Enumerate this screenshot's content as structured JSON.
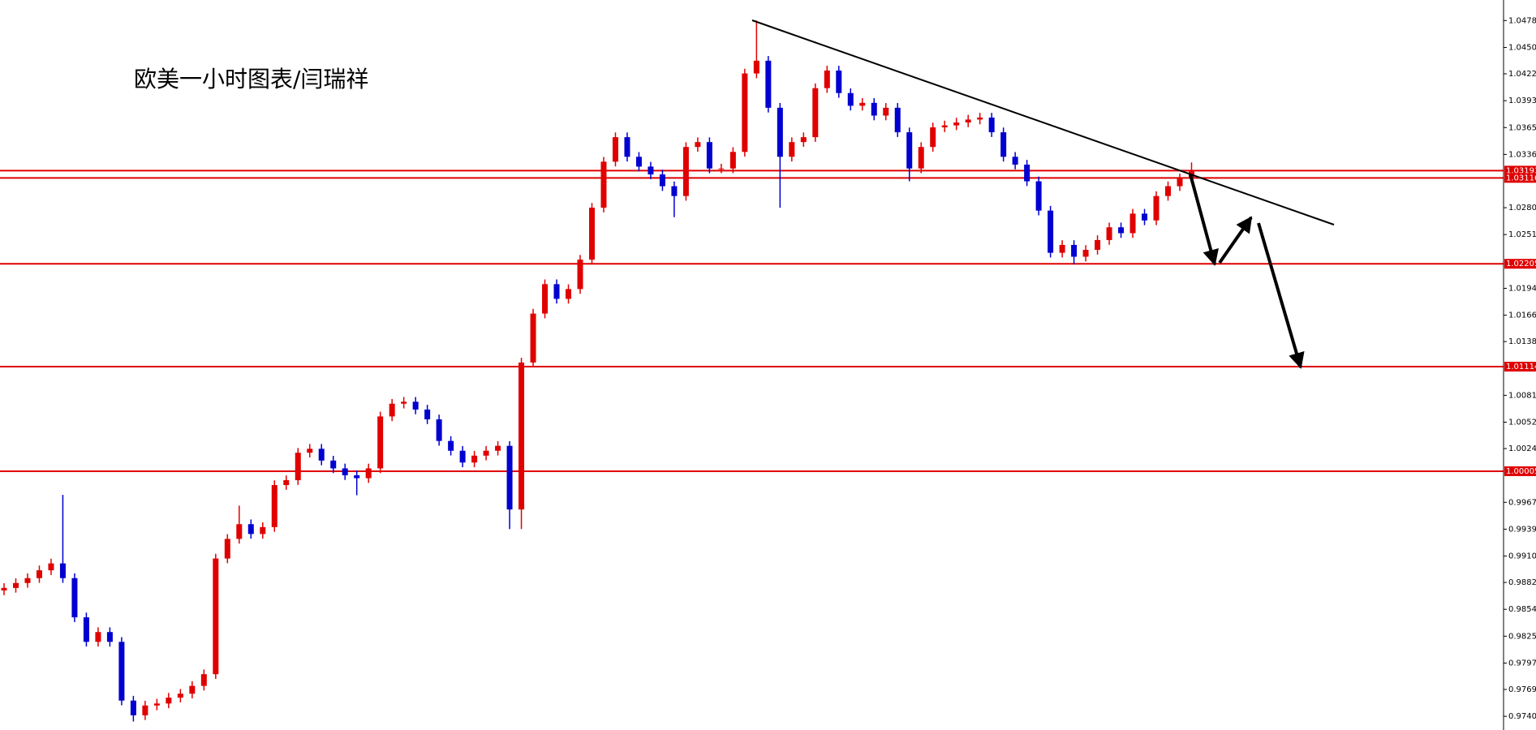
{
  "chart_data": {
    "type": "candlestick",
    "title": "欧美一小时图表/闫瑞祥",
    "up_color": "#e00000",
    "down_color": "#0000d0",
    "level_color": "#e00000",
    "ylim": [
      0.9726,
      1.05003
    ],
    "yticks": [
      1.04785,
      {
        "value": 1.045,
        "label": "1.04500"
      },
      {
        "value": 1.0422,
        "label": "1.04220"
      },
      1.03935,
      {
        "value": 1.0365,
        "label": "1.03650"
      },
      1.03365,
      {
        "value": 1.028,
        "label": "1.02800"
      },
      1.02515,
      1.01945,
      {
        "value": 1.0166,
        "label": "1.01660"
      },
      {
        "value": 1.0138,
        "label": "1.01380"
      },
      {
        "value": 1.0081,
        "label": "1.00810"
      },
      1.00525,
      1.00245,
      0.99675,
      {
        "value": 0.9939,
        "label": "0.99390"
      },
      0.99105,
      0.98825,
      {
        "value": 0.9854,
        "label": "0.98540"
      },
      0.98255,
      {
        "value": 0.9797,
        "label": "0.97970"
      },
      {
        "value": 0.9769,
        "label": "0.97690"
      },
      0.97405
    ],
    "levels": [
      1.03193,
      1.03116,
      1.02205,
      1.01114,
      1.00005
    ],
    "open": [
      0.9874,
      0.98767,
      0.98819,
      0.98871,
      0.98954,
      0.99027,
      0.98871,
      0.98455,
      0.98195,
      0.98299,
      0.98195,
      0.97572,
      0.97416,
      0.9752,
      0.97541,
      0.97603,
      0.97645,
      0.97728,
      0.97852,
      0.99079,
      0.99287,
      0.99443,
      0.99339,
      0.99412,
      0.99858,
      0.9991,
      1.00201,
      1.00243,
      1.00118,
      1.00035,
      0.99962,
      0.99931,
      1.00035,
      1.00586,
      1.00721,
      1.00742,
      1.00659,
      1.00555,
      1.00326,
      1.00222,
      1.00097,
      1.0017,
      1.00222,
      1.00274,
      0.99599,
      1.01158,
      1.01677,
      1.01989,
      1.01833,
      1.01937,
      1.02249,
      1.028,
      1.03288,
      1.03548,
      1.0334,
      1.03236,
      1.03153,
      1.03028,
      1.02924,
      1.03444,
      1.03496,
      1.03216,
      1.03216,
      1.03392,
      1.04224,
      1.04359,
      1.0386,
      1.0334,
      1.03496,
      1.03548,
      1.04068,
      1.04255,
      1.04016,
      1.03881,
      1.03912,
      1.03777,
      1.0386,
      1.036,
      1.03216,
      1.03444,
      1.03652,
      1.03673,
      1.03704,
      1.03735,
      1.03756,
      1.036,
      1.0334,
      1.03257,
      1.0308,
      1.02769,
      1.02322,
      1.02405,
      1.0228,
      1.02353,
      1.02457,
      1.02592,
      1.0253,
      1.02737,
      1.02665,
      1.02924,
      1.03028,
      1.03111
    ],
    "high": [
      0.98817,
      0.98869,
      0.98921,
      0.99004,
      0.99077,
      0.99754,
      0.98921,
      0.98505,
      0.98349,
      0.98349,
      0.98245,
      0.97622,
      0.9757,
      0.97591,
      0.97653,
      0.97695,
      0.97778,
      0.97902,
      0.99129,
      0.99337,
      0.9964,
      0.99493,
      0.99462,
      0.99908,
      0.9996,
      1.00251,
      1.00293,
      1.00293,
      1.00168,
      1.00085,
      1.00012,
      1.00085,
      1.00636,
      1.00771,
      1.00792,
      1.00792,
      1.00709,
      1.00605,
      1.00376,
      1.00272,
      1.0022,
      1.00272,
      1.00324,
      1.00324,
      1.01208,
      1.01727,
      1.02039,
      1.02039,
      1.01987,
      1.02299,
      1.0285,
      1.03338,
      1.03598,
      1.03598,
      1.0339,
      1.03286,
      1.03203,
      1.03078,
      1.03494,
      1.03546,
      1.03546,
      1.03266,
      1.03442,
      1.04274,
      1.04785,
      1.04409,
      1.0391,
      1.03546,
      1.03598,
      1.04118,
      1.04305,
      1.04305,
      1.04066,
      1.03962,
      1.03962,
      1.0391,
      1.0391,
      1.0365,
      1.03494,
      1.03702,
      1.03723,
      1.03754,
      1.03785,
      1.03806,
      1.03806,
      1.0365,
      1.0339,
      1.03307,
      1.0313,
      1.02819,
      1.02455,
      1.02455,
      1.02403,
      1.02507,
      1.02642,
      1.02642,
      1.02787,
      1.02787,
      1.02974,
      1.03078,
      1.03161,
      1.0328
    ],
    "low": [
      0.9869,
      0.98717,
      0.98769,
      0.98821,
      0.98904,
      0.98821,
      0.98405,
      0.98145,
      0.98145,
      0.98145,
      0.97522,
      0.9735,
      0.97366,
      0.9747,
      0.97491,
      0.97553,
      0.97595,
      0.97678,
      0.97802,
      0.99029,
      0.99237,
      0.99289,
      0.99289,
      0.99362,
      0.99808,
      0.9986,
      1.00151,
      1.00068,
      0.99985,
      0.99912,
      0.9975,
      0.99881,
      0.99985,
      1.00536,
      1.00671,
      1.00609,
      1.00505,
      1.00276,
      1.00172,
      1.00047,
      1.00047,
      1.0012,
      1.00172,
      0.99391,
      0.99391,
      1.01108,
      1.01627,
      1.01783,
      1.01783,
      1.01887,
      1.02199,
      1.0275,
      1.03238,
      1.0329,
      1.03186,
      1.03103,
      1.02978,
      1.027,
      1.02874,
      1.03394,
      1.03166,
      1.03166,
      1.03166,
      1.03342,
      1.04174,
      1.0381,
      1.028,
      1.0329,
      1.03446,
      1.03498,
      1.04018,
      1.03966,
      1.03831,
      1.03831,
      1.03727,
      1.03727,
      1.0355,
      1.0308,
      1.03166,
      1.03394,
      1.03602,
      1.03623,
      1.03654,
      1.03685,
      1.0355,
      1.0329,
      1.03207,
      1.0303,
      1.02719,
      1.02272,
      1.02272,
      1.022,
      1.0223,
      1.02303,
      1.02407,
      1.0248,
      1.0248,
      1.02615,
      1.02615,
      1.02874,
      1.02978,
      1.03061
    ],
    "close": [
      0.98767,
      0.98819,
      0.98871,
      0.98954,
      0.99027,
      0.98871,
      0.98455,
      0.98195,
      0.98299,
      0.98195,
      0.97572,
      0.97416,
      0.9752,
      0.97541,
      0.97603,
      0.97645,
      0.97728,
      0.97852,
      0.99079,
      0.99287,
      0.99443,
      0.99339,
      0.99412,
      0.99858,
      0.9991,
      1.00201,
      1.00243,
      1.00118,
      1.00035,
      0.99962,
      0.99931,
      1.00035,
      1.00586,
      1.00721,
      1.00742,
      1.00659,
      1.00555,
      1.00326,
      1.00222,
      1.00097,
      1.0017,
      1.00222,
      1.00274,
      0.99599,
      1.01158,
      1.01677,
      1.01989,
      1.01833,
      1.01937,
      1.02249,
      1.028,
      1.03288,
      1.03548,
      1.0334,
      1.03236,
      1.03153,
      1.03028,
      1.02924,
      1.03444,
      1.03496,
      1.03216,
      1.03216,
      1.03392,
      1.04224,
      1.04359,
      1.0386,
      1.0334,
      1.03496,
      1.03548,
      1.04068,
      1.04255,
      1.04016,
      1.03881,
      1.03912,
      1.03777,
      1.0386,
      1.036,
      1.03216,
      1.03444,
      1.03652,
      1.03673,
      1.03704,
      1.03735,
      1.03756,
      1.036,
      1.0334,
      1.03257,
      1.0308,
      1.02769,
      1.02322,
      1.02405,
      1.0228,
      1.02353,
      1.02457,
      1.02592,
      1.0253,
      1.02737,
      1.02665,
      1.02924,
      1.03028,
      1.03111,
      1.03184
    ]
  }
}
